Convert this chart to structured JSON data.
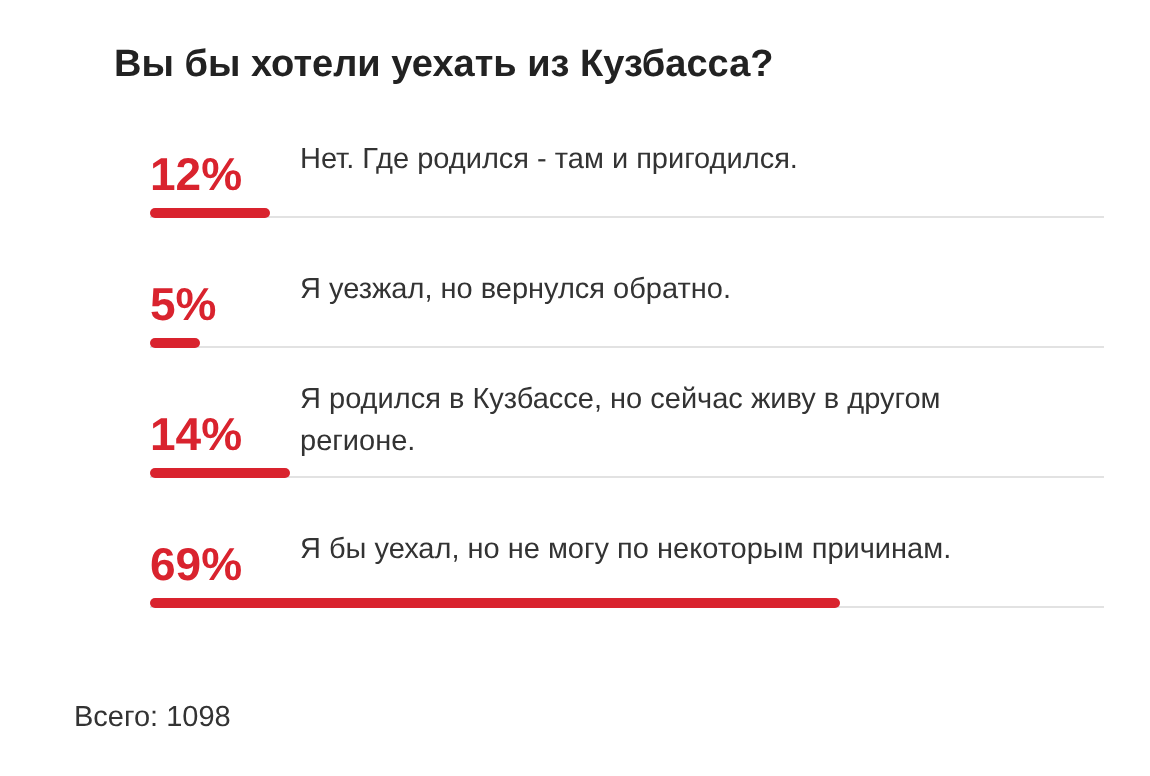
{
  "chart_data": {
    "type": "bar",
    "orientation": "horizontal",
    "title": "Вы бы хотели уехать из Кузбасса?",
    "categories": [
      "Нет. Где родился - там и пригодился.",
      "Я уезжал, но вернулся обратно.",
      "Я родился в Кузбассе, но сейчас живу в другом регионе.",
      "Я бы уехал, но не могу по некоторым причинам."
    ],
    "values": [
      12,
      5,
      14,
      69
    ],
    "value_labels": [
      "12%",
      "5%",
      "14%",
      "69%"
    ],
    "color": "#d9232e",
    "annotations": [
      "Всего: 1098"
    ]
  }
}
